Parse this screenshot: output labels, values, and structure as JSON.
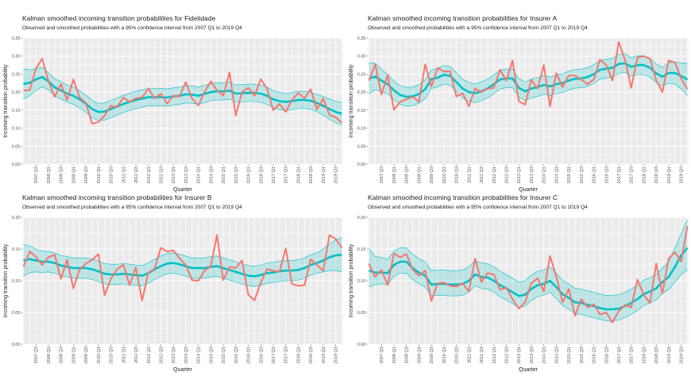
{
  "quarters": [
    "2007 Q1",
    "2007 Q2",
    "2007 Q3",
    "2007 Q4",
    "2008 Q1",
    "2008 Q2",
    "2008 Q3",
    "2008 Q4",
    "2009 Q1",
    "2009 Q2",
    "2009 Q3",
    "2009 Q4",
    "2010 Q1",
    "2010 Q2",
    "2010 Q3",
    "2010 Q4",
    "2011 Q1",
    "2011 Q2",
    "2011 Q3",
    "2011 Q4",
    "2012 Q1",
    "2012 Q2",
    "2012 Q3",
    "2012 Q4",
    "2013 Q1",
    "2013 Q2",
    "2013 Q3",
    "2013 Q4",
    "2014 Q1",
    "2014 Q2",
    "2014 Q3",
    "2014 Q4",
    "2015 Q1",
    "2015 Q2",
    "2015 Q3",
    "2015 Q4",
    "2016 Q1",
    "2016 Q2",
    "2016 Q3",
    "2016 Q4",
    "2017 Q1",
    "2017 Q2",
    "2017 Q3",
    "2017 Q4",
    "2018 Q1",
    "2018 Q2",
    "2018 Q3",
    "2018 Q4",
    "2019 Q1",
    "2019 Q2",
    "2019 Q3",
    "2019 Q4"
  ],
  "x_tick_labels": [
    "2007 Q3",
    "2008 Q1",
    "2008 Q3",
    "2009 Q1",
    "2009 Q3",
    "2010 Q1",
    "2010 Q3",
    "2011 Q1",
    "2011 Q3",
    "2012 Q1",
    "2012 Q3",
    "2013 Q1",
    "2013 Q3",
    "2014 Q1",
    "2014 Q3",
    "2015 Q1",
    "2015 Q3",
    "2016 Q1",
    "2016 Q3",
    "2017 Q1",
    "2017 Q3",
    "2018 Q1",
    "2018 Q3",
    "2019 Q1",
    "2019 Q3"
  ],
  "colors": {
    "observed": "#F8766D",
    "smoothed": "#00BFC4",
    "band": "#00BFC4",
    "panel": "#EBEBEB",
    "grid": "#FFFFFF"
  },
  "chart_data": [
    {
      "type": "line",
      "title": "Kalman smoothed incoming transition probabilities for Fidelidade",
      "subtitle": "Observed and smoothed probabilities with a 95% confidence interval from 2007 Q1 to 2019 Q4",
      "xlabel": "Quarter",
      "ylabel": "Incoming transition probability",
      "ylim": [
        0,
        0.35
      ],
      "yticks": [
        "0.00",
        "0.05",
        "0.10",
        "0.15",
        "0.20",
        "0.25",
        "0.30",
        "0.35"
      ],
      "grid": true,
      "observed": [
        0.205,
        0.205,
        0.265,
        0.293,
        0.23,
        0.187,
        0.222,
        0.178,
        0.235,
        0.185,
        0.17,
        0.112,
        0.117,
        0.135,
        0.162,
        0.158,
        0.185,
        0.173,
        0.183,
        0.185,
        0.21,
        0.183,
        0.196,
        0.168,
        0.19,
        0.188,
        0.228,
        0.182,
        0.163,
        0.2,
        0.23,
        0.205,
        0.19,
        0.255,
        0.135,
        0.2,
        0.212,
        0.19,
        0.236,
        0.21,
        0.15,
        0.167,
        0.145,
        0.178,
        0.198,
        0.183,
        0.208,
        0.152,
        0.182,
        0.137,
        0.13,
        0.115
      ],
      "smoothed": [
        0.223,
        0.226,
        0.235,
        0.242,
        0.23,
        0.213,
        0.205,
        0.196,
        0.19,
        0.18,
        0.168,
        0.153,
        0.145,
        0.146,
        0.153,
        0.16,
        0.167,
        0.173,
        0.178,
        0.182,
        0.186,
        0.186,
        0.186,
        0.185,
        0.188,
        0.19,
        0.194,
        0.193,
        0.19,
        0.195,
        0.2,
        0.202,
        0.202,
        0.204,
        0.196,
        0.197,
        0.198,
        0.198,
        0.196,
        0.19,
        0.18,
        0.175,
        0.173,
        0.175,
        0.178,
        0.178,
        0.176,
        0.17,
        0.162,
        0.153,
        0.145,
        0.14
      ],
      "ci_upper": [
        0.265,
        0.262,
        0.265,
        0.269,
        0.254,
        0.237,
        0.229,
        0.22,
        0.214,
        0.204,
        0.192,
        0.177,
        0.169,
        0.17,
        0.177,
        0.184,
        0.191,
        0.197,
        0.202,
        0.206,
        0.21,
        0.21,
        0.21,
        0.209,
        0.212,
        0.214,
        0.218,
        0.217,
        0.214,
        0.219,
        0.224,
        0.226,
        0.226,
        0.228,
        0.22,
        0.221,
        0.222,
        0.222,
        0.22,
        0.214,
        0.204,
        0.199,
        0.197,
        0.199,
        0.202,
        0.202,
        0.2,
        0.194,
        0.188,
        0.181,
        0.175,
        0.172
      ],
      "ci_lower": [
        0.181,
        0.19,
        0.205,
        0.215,
        0.206,
        0.189,
        0.181,
        0.172,
        0.166,
        0.156,
        0.144,
        0.129,
        0.121,
        0.122,
        0.129,
        0.136,
        0.143,
        0.149,
        0.154,
        0.158,
        0.162,
        0.162,
        0.162,
        0.161,
        0.164,
        0.166,
        0.17,
        0.169,
        0.166,
        0.171,
        0.176,
        0.178,
        0.178,
        0.18,
        0.172,
        0.173,
        0.174,
        0.174,
        0.172,
        0.166,
        0.156,
        0.151,
        0.149,
        0.151,
        0.154,
        0.154,
        0.152,
        0.146,
        0.136,
        0.125,
        0.115,
        0.108
      ]
    },
    {
      "type": "line",
      "title": "Kalman smoothed incoming transition probabilities for Insurer A",
      "subtitle": "Observed and smoothed probabilities with a 95% confidence interval from 2007 Q1 to 2019 Q4",
      "xlabel": "Quarter",
      "ylabel": "Incoming transition probability",
      "ylim": [
        0,
        0.35
      ],
      "yticks": [
        "0.00",
        "0.05",
        "0.10",
        "0.15",
        "0.20",
        "0.25",
        "0.30",
        "0.35"
      ],
      "grid": true,
      "observed": [
        0.232,
        0.277,
        0.193,
        0.248,
        0.151,
        0.173,
        0.18,
        0.187,
        0.173,
        0.277,
        0.215,
        0.267,
        0.257,
        0.258,
        0.188,
        0.197,
        0.161,
        0.21,
        0.2,
        0.21,
        0.212,
        0.262,
        0.232,
        0.288,
        0.175,
        0.165,
        0.234,
        0.21,
        0.275,
        0.16,
        0.253,
        0.214,
        0.246,
        0.246,
        0.235,
        0.222,
        0.235,
        0.29,
        0.275,
        0.232,
        0.339,
        0.29,
        0.212,
        0.296,
        0.3,
        0.293,
        0.233,
        0.2,
        0.288,
        0.282,
        0.238,
        0.208
      ],
      "smoothed": [
        0.238,
        0.243,
        0.232,
        0.222,
        0.205,
        0.192,
        0.187,
        0.188,
        0.195,
        0.208,
        0.236,
        0.24,
        0.248,
        0.245,
        0.228,
        0.21,
        0.2,
        0.197,
        0.202,
        0.21,
        0.222,
        0.235,
        0.238,
        0.238,
        0.212,
        0.202,
        0.21,
        0.214,
        0.22,
        0.216,
        0.222,
        0.225,
        0.232,
        0.237,
        0.238,
        0.242,
        0.25,
        0.262,
        0.265,
        0.268,
        0.278,
        0.28,
        0.27,
        0.275,
        0.275,
        0.268,
        0.252,
        0.243,
        0.253,
        0.253,
        0.245,
        0.235
      ],
      "ci_upper": [
        0.281,
        0.28,
        0.263,
        0.249,
        0.231,
        0.218,
        0.213,
        0.214,
        0.221,
        0.234,
        0.262,
        0.266,
        0.274,
        0.271,
        0.254,
        0.236,
        0.226,
        0.223,
        0.228,
        0.236,
        0.248,
        0.261,
        0.264,
        0.264,
        0.238,
        0.228,
        0.236,
        0.24,
        0.246,
        0.242,
        0.248,
        0.251,
        0.258,
        0.263,
        0.264,
        0.268,
        0.276,
        0.288,
        0.291,
        0.294,
        0.304,
        0.306,
        0.296,
        0.301,
        0.301,
        0.294,
        0.278,
        0.269,
        0.281,
        0.284,
        0.281,
        0.28
      ],
      "ci_lower": [
        0.195,
        0.206,
        0.201,
        0.195,
        0.179,
        0.166,
        0.161,
        0.162,
        0.169,
        0.182,
        0.21,
        0.214,
        0.222,
        0.219,
        0.202,
        0.184,
        0.174,
        0.171,
        0.176,
        0.184,
        0.196,
        0.209,
        0.212,
        0.212,
        0.186,
        0.176,
        0.184,
        0.188,
        0.194,
        0.19,
        0.196,
        0.199,
        0.206,
        0.211,
        0.212,
        0.216,
        0.224,
        0.236,
        0.239,
        0.242,
        0.252,
        0.254,
        0.244,
        0.249,
        0.249,
        0.242,
        0.226,
        0.217,
        0.225,
        0.222,
        0.209,
        0.19
      ]
    },
    {
      "type": "line",
      "title": "Kalman smoothed incoming transition probabilities for Insurer B",
      "subtitle": "Observed and smoothed probabilities with a 95% confidence interval from 2007 Q1 to 2019 Q4",
      "xlabel": "Quarter",
      "ylabel": "Incoming transition probability",
      "ylim": [
        0,
        0.2
      ],
      "yticks": [
        "0.00",
        "0.05",
        "0.10",
        "0.15",
        "0.20"
      ],
      "grid": true,
      "observed": [
        0.122,
        0.146,
        0.138,
        0.125,
        0.137,
        0.141,
        0.103,
        0.133,
        0.088,
        0.118,
        0.127,
        0.133,
        0.142,
        0.077,
        0.103,
        0.118,
        0.125,
        0.093,
        0.121,
        0.069,
        0.113,
        0.119,
        0.152,
        0.146,
        0.148,
        0.135,
        0.125,
        0.101,
        0.1,
        0.116,
        0.123,
        0.172,
        0.101,
        0.122,
        0.12,
        0.132,
        0.078,
        0.069,
        0.097,
        0.118,
        0.116,
        0.114,
        0.151,
        0.095,
        0.092,
        0.093,
        0.134,
        0.125,
        0.116,
        0.172,
        0.166,
        0.152
      ],
      "smoothed": [
        0.132,
        0.134,
        0.132,
        0.13,
        0.13,
        0.128,
        0.124,
        0.122,
        0.12,
        0.12,
        0.12,
        0.118,
        0.115,
        0.111,
        0.11,
        0.11,
        0.111,
        0.11,
        0.109,
        0.108,
        0.112,
        0.118,
        0.123,
        0.127,
        0.128,
        0.126,
        0.123,
        0.12,
        0.12,
        0.12,
        0.122,
        0.123,
        0.12,
        0.117,
        0.114,
        0.111,
        0.108,
        0.107,
        0.109,
        0.112,
        0.113,
        0.115,
        0.116,
        0.116,
        0.117,
        0.12,
        0.125,
        0.128,
        0.132,
        0.137,
        0.14,
        0.141
      ],
      "ci_upper": [
        0.157,
        0.155,
        0.15,
        0.147,
        0.146,
        0.144,
        0.14,
        0.138,
        0.136,
        0.136,
        0.136,
        0.134,
        0.131,
        0.127,
        0.126,
        0.126,
        0.127,
        0.126,
        0.125,
        0.124,
        0.128,
        0.134,
        0.139,
        0.143,
        0.144,
        0.142,
        0.139,
        0.136,
        0.136,
        0.136,
        0.138,
        0.139,
        0.136,
        0.133,
        0.13,
        0.127,
        0.124,
        0.123,
        0.125,
        0.128,
        0.129,
        0.131,
        0.132,
        0.132,
        0.133,
        0.136,
        0.141,
        0.144,
        0.15,
        0.158,
        0.164,
        0.168
      ],
      "ci_lower": [
        0.107,
        0.113,
        0.114,
        0.113,
        0.114,
        0.112,
        0.108,
        0.106,
        0.104,
        0.104,
        0.104,
        0.102,
        0.099,
        0.095,
        0.094,
        0.094,
        0.095,
        0.094,
        0.093,
        0.092,
        0.096,
        0.102,
        0.107,
        0.111,
        0.112,
        0.11,
        0.107,
        0.104,
        0.104,
        0.104,
        0.106,
        0.107,
        0.104,
        0.101,
        0.098,
        0.095,
        0.092,
        0.091,
        0.093,
        0.096,
        0.097,
        0.099,
        0.1,
        0.1,
        0.101,
        0.104,
        0.109,
        0.112,
        0.114,
        0.116,
        0.116,
        0.114
      ]
    },
    {
      "type": "line",
      "title": "Kalman smoothed incoming transition probabilities for Insurer C",
      "subtitle": "Observed and smoothed probabilities with a 95% confidence interval from 2007 Q1 to 2019 Q4",
      "xlabel": "Quarter",
      "ylabel": "Incoming transition probability",
      "ylim": [
        0,
        0.2
      ],
      "yticks": [
        "0.00",
        "0.05",
        "0.10",
        "0.15",
        "0.20"
      ],
      "grid": true,
      "observed": [
        0.127,
        0.106,
        0.117,
        0.093,
        0.143,
        0.137,
        0.142,
        0.118,
        0.108,
        0.116,
        0.068,
        0.096,
        0.097,
        0.092,
        0.091,
        0.096,
        0.083,
        0.135,
        0.098,
        0.112,
        0.11,
        0.086,
        0.089,
        0.071,
        0.056,
        0.066,
        0.096,
        0.104,
        0.083,
        0.139,
        0.107,
        0.066,
        0.087,
        0.045,
        0.071,
        0.058,
        0.063,
        0.047,
        0.05,
        0.034,
        0.052,
        0.062,
        0.058,
        0.102,
        0.078,
        0.065,
        0.127,
        0.08,
        0.135,
        0.145,
        0.13,
        0.186
      ],
      "smoothed": [
        0.116,
        0.113,
        0.113,
        0.112,
        0.125,
        0.13,
        0.13,
        0.12,
        0.113,
        0.108,
        0.094,
        0.095,
        0.095,
        0.094,
        0.094,
        0.095,
        0.1,
        0.11,
        0.106,
        0.105,
        0.1,
        0.093,
        0.088,
        0.082,
        0.076,
        0.078,
        0.087,
        0.093,
        0.095,
        0.1,
        0.09,
        0.079,
        0.073,
        0.066,
        0.065,
        0.062,
        0.06,
        0.057,
        0.055,
        0.055,
        0.056,
        0.06,
        0.065,
        0.071,
        0.079,
        0.083,
        0.088,
        0.098,
        0.106,
        0.122,
        0.14,
        0.152
      ],
      "ci_upper": [
        0.151,
        0.138,
        0.137,
        0.134,
        0.147,
        0.152,
        0.152,
        0.142,
        0.135,
        0.13,
        0.116,
        0.117,
        0.117,
        0.116,
        0.116,
        0.117,
        0.122,
        0.132,
        0.128,
        0.127,
        0.122,
        0.115,
        0.11,
        0.104,
        0.098,
        0.1,
        0.109,
        0.115,
        0.117,
        0.122,
        0.112,
        0.101,
        0.095,
        0.088,
        0.087,
        0.084,
        0.082,
        0.079,
        0.077,
        0.077,
        0.078,
        0.082,
        0.087,
        0.093,
        0.101,
        0.105,
        0.11,
        0.12,
        0.13,
        0.152,
        0.174,
        0.196
      ],
      "ci_lower": [
        0.09,
        0.094,
        0.095,
        0.094,
        0.107,
        0.112,
        0.112,
        0.102,
        0.095,
        0.09,
        0.076,
        0.077,
        0.077,
        0.076,
        0.076,
        0.077,
        0.082,
        0.092,
        0.088,
        0.087,
        0.082,
        0.075,
        0.07,
        0.064,
        0.058,
        0.06,
        0.069,
        0.075,
        0.077,
        0.082,
        0.072,
        0.061,
        0.055,
        0.048,
        0.047,
        0.044,
        0.042,
        0.039,
        0.037,
        0.037,
        0.038,
        0.042,
        0.047,
        0.053,
        0.061,
        0.065,
        0.07,
        0.08,
        0.086,
        0.098,
        0.11,
        0.117
      ]
    }
  ]
}
